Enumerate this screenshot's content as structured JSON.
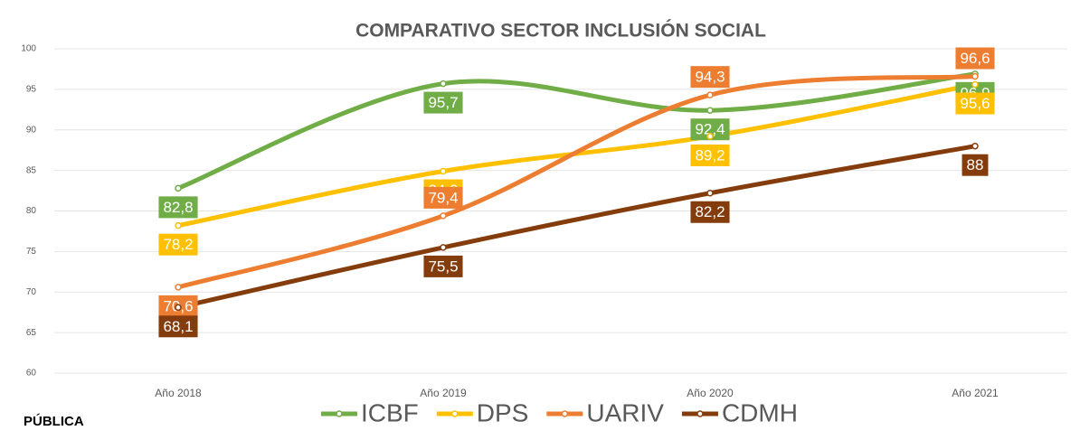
{
  "chart_data": {
    "type": "line",
    "title": "COMPARATIVO SECTOR INCLUSIÓN SOCIAL",
    "footer": "PÚBLICA",
    "categories": [
      "Año 2018",
      "Año 2019",
      "Año 2020",
      "Año 2021"
    ],
    "series": [
      {
        "name": "ICBF",
        "color": "#70ad47",
        "values": [
          82.8,
          95.7,
          92.4,
          96.9
        ],
        "value_labels": [
          "82,8",
          "95,7",
          "92,4",
          "96,9"
        ]
      },
      {
        "name": "DPS",
        "color": "#ffc000",
        "values": [
          78.2,
          84.9,
          89.2,
          95.6
        ],
        "value_labels": [
          "78,2",
          "84,9",
          "89,2",
          "95,6"
        ]
      },
      {
        "name": "UARIV",
        "color": "#ed7d31",
        "values": [
          70.6,
          79.4,
          94.3,
          96.6
        ],
        "value_labels": [
          "70,6",
          "79,4",
          "94,3",
          "96,6"
        ]
      },
      {
        "name": "CDMH",
        "color": "#843c0c",
        "values": [
          68.1,
          75.5,
          82.2,
          88
        ],
        "value_labels": [
          "68,1",
          "75,5",
          "82,2",
          "88"
        ]
      }
    ],
    "ylim": [
      60,
      100
    ],
    "yticks": [
      60,
      65,
      70,
      75,
      80,
      85,
      90,
      95,
      100
    ],
    "grid": true,
    "legend": "bottom"
  }
}
